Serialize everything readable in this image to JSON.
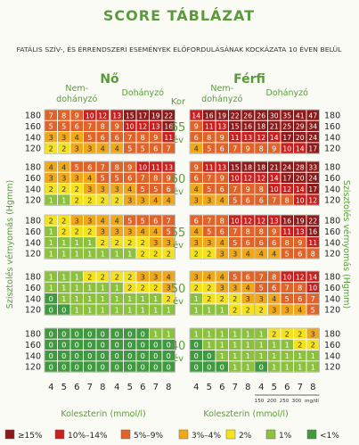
{
  "chart_data": {
    "type": "heatmap",
    "title": "SCORE TÁBLÁZAT",
    "subtitle": "FATÁLIS SZÍV-, ÉS ÉRRENDSZERI ESEMÉNYEK ELŐFORDULÁSÁNAK KOCKÁZATA 10 ÉVEN BELÜL",
    "sex_labels": [
      "Nő",
      "Férfi"
    ],
    "smoking_labels": [
      "Nem-\ndohányzó",
      "Dohányzó"
    ],
    "age_header": "Kor",
    "age_unit": "év",
    "ages": [
      "65",
      "60",
      "55",
      "50",
      "40"
    ],
    "y_label": "Szisztolés vérnyomás (Hgmm)",
    "x_label": "Koleszterin (mmol/l)",
    "bp_ticks": [
      "180",
      "160",
      "140",
      "120"
    ],
    "chol_ticks": [
      "4",
      "5",
      "6",
      "7",
      "8"
    ],
    "mgdl_ticks": [
      "150",
      "200",
      "250",
      "300",
      "mg/dl"
    ],
    "categories": [
      {
        "label": "≥15%",
        "color": "#8b1a1a"
      },
      {
        "label": "10%–14%",
        "color": "#c8201e"
      },
      {
        "label": "5%–9%",
        "color": "#e0642a"
      },
      {
        "label": "3%–4%",
        "color": "#f0a81a"
      },
      {
        "label": "2%",
        "color": "#f5e21e"
      },
      {
        "label": "1%",
        "color": "#8cc13f"
      },
      {
        "label": "<1%",
        "color": "#3f9a3f"
      }
    ],
    "groups": [
      {
        "sex": "Nő",
        "smoking": "Nem-dohányzó",
        "age": "65",
        "values": [
          [
            7,
            8,
            9,
            10,
            12
          ],
          [
            5,
            5,
            6,
            7,
            8
          ],
          [
            3,
            3,
            4,
            5,
            6
          ],
          [
            2,
            2,
            3,
            3,
            4
          ]
        ]
      },
      {
        "sex": "Nő",
        "smoking": "Dohányzó",
        "age": "65",
        "values": [
          [
            13,
            15,
            17,
            19,
            22
          ],
          [
            9,
            10,
            12,
            13,
            16
          ],
          [
            6,
            7,
            8,
            9,
            11
          ],
          [
            4,
            5,
            5,
            6,
            7
          ]
        ]
      },
      {
        "sex": "Férfi",
        "smoking": "Nem-dohányzó",
        "age": "65",
        "values": [
          [
            14,
            16,
            19,
            22,
            26
          ],
          [
            9,
            11,
            13,
            15,
            16
          ],
          [
            6,
            8,
            9,
            11,
            13
          ],
          [
            4,
            5,
            6,
            7,
            9
          ]
        ]
      },
      {
        "sex": "Férfi",
        "smoking": "Dohányzó",
        "age": "65",
        "values": [
          [
            26,
            30,
            35,
            41,
            47
          ],
          [
            18,
            21,
            25,
            29,
            34
          ],
          [
            12,
            14,
            17,
            20,
            24
          ],
          [
            8,
            9,
            10,
            14,
            17
          ]
        ]
      },
      {
        "sex": "Nő",
        "smoking": "Nem-dohányzó",
        "age": "60",
        "values": [
          [
            4,
            4,
            5,
            6,
            7
          ],
          [
            3,
            3,
            3,
            4,
            5
          ],
          [
            2,
            2,
            2,
            3,
            3
          ],
          [
            1,
            1,
            2,
            2,
            2
          ]
        ]
      },
      {
        "sex": "Nő",
        "smoking": "Dohányzó",
        "age": "60",
        "values": [
          [
            8,
            9,
            10,
            11,
            13
          ],
          [
            5,
            6,
            7,
            8,
            9
          ],
          [
            3,
            4,
            5,
            5,
            6
          ],
          [
            2,
            3,
            3,
            4,
            4
          ]
        ]
      },
      {
        "sex": "Férfi",
        "smoking": "Nem-dohányzó",
        "age": "60",
        "values": [
          [
            9,
            11,
            13,
            15,
            18
          ],
          [
            6,
            7,
            9,
            10,
            12
          ],
          [
            4,
            5,
            6,
            7,
            9
          ],
          [
            3,
            3,
            4,
            5,
            6
          ]
        ]
      },
      {
        "sex": "Férfi",
        "smoking": "Dohányzó",
        "age": "60",
        "values": [
          [
            18,
            21,
            24,
            28,
            33
          ],
          [
            12,
            14,
            17,
            20,
            24
          ],
          [
            8,
            10,
            12,
            14,
            17
          ],
          [
            6,
            7,
            8,
            10,
            12
          ]
        ]
      },
      {
        "sex": "Nő",
        "smoking": "Nem-dohányzó",
        "age": "55",
        "values": [
          [
            2,
            2,
            3,
            3,
            4
          ],
          [
            1,
            2,
            2,
            2,
            3
          ],
          [
            1,
            1,
            1,
            1,
            2
          ],
          [
            1,
            1,
            1,
            1,
            1
          ]
        ]
      },
      {
        "sex": "Nő",
        "smoking": "Dohányzó",
        "age": "55",
        "values": [
          [
            4,
            5,
            5,
            6,
            7
          ],
          [
            3,
            3,
            4,
            4,
            5
          ],
          [
            2,
            2,
            2,
            3,
            3
          ],
          [
            1,
            1,
            2,
            2,
            2
          ]
        ]
      },
      {
        "sex": "Férfi",
        "smoking": "Nem-dohányzó",
        "age": "55",
        "values": [
          [
            6,
            7,
            8,
            10,
            12
          ],
          [
            4,
            5,
            6,
            7,
            8
          ],
          [
            3,
            3,
            4,
            5,
            6
          ],
          [
            2,
            2,
            3,
            3,
            4
          ]
        ]
      },
      {
        "sex": "Férfi",
        "smoking": "Dohányzó",
        "age": "55",
        "values": [
          [
            12,
            13,
            16,
            19,
            22
          ],
          [
            8,
            9,
            11,
            13,
            16
          ],
          [
            6,
            6,
            8,
            9,
            11
          ],
          [
            4,
            4,
            5,
            6,
            8
          ]
        ]
      },
      {
        "sex": "Nő",
        "smoking": "Nem-dohányzó",
        "age": "50",
        "values": [
          [
            1,
            1,
            1,
            2,
            2
          ],
          [
            1,
            1,
            1,
            1,
            1
          ],
          [
            0,
            1,
            1,
            1,
            1
          ],
          [
            0,
            0,
            1,
            1,
            1
          ]
        ]
      },
      {
        "sex": "Nő",
        "smoking": "Dohányzó",
        "age": "50",
        "values": [
          [
            2,
            2,
            3,
            3,
            4
          ],
          [
            1,
            2,
            2,
            2,
            3
          ],
          [
            1,
            1,
            1,
            1,
            2
          ],
          [
            1,
            1,
            1,
            1,
            1
          ]
        ]
      },
      {
        "sex": "Férfi",
        "smoking": "Nem-dohányzó",
        "age": "50",
        "values": [
          [
            3,
            4,
            4,
            5,
            6
          ],
          [
            2,
            2,
            3,
            3,
            4
          ],
          [
            1,
            2,
            2,
            2,
            3
          ],
          [
            1,
            1,
            1,
            2,
            2
          ]
        ]
      },
      {
        "sex": "Férfi",
        "smoking": "Dohányzó",
        "age": "50",
        "values": [
          [
            7,
            8,
            10,
            12,
            14
          ],
          [
            5,
            6,
            7,
            8,
            10
          ],
          [
            3,
            4,
            5,
            6,
            7
          ],
          [
            2,
            3,
            3,
            4,
            5
          ]
        ]
      },
      {
        "sex": "Nő",
        "smoking": "Nem-dohányzó",
        "age": "40",
        "values": [
          [
            0,
            0,
            0,
            0,
            0
          ],
          [
            0,
            0,
            0,
            0,
            0
          ],
          [
            0,
            0,
            0,
            0,
            0
          ],
          [
            0,
            0,
            0,
            0,
            0
          ]
        ]
      },
      {
        "sex": "Nő",
        "smoking": "Dohányzó",
        "age": "40",
        "values": [
          [
            0,
            0,
            0,
            1,
            1
          ],
          [
            0,
            0,
            0,
            0,
            0
          ],
          [
            0,
            0,
            0,
            0,
            0
          ],
          [
            0,
            0,
            0,
            0,
            0
          ]
        ]
      },
      {
        "sex": "Férfi",
        "smoking": "Nem-dohányzó",
        "age": "40",
        "values": [
          [
            1,
            1,
            1,
            1,
            1
          ],
          [
            0,
            1,
            1,
            1,
            1
          ],
          [
            0,
            0,
            1,
            1,
            1
          ],
          [
            0,
            0,
            0,
            1,
            1
          ]
        ]
      },
      {
        "sex": "Férfi",
        "smoking": "Dohányzó",
        "age": "40",
        "values": [
          [
            1,
            2,
            2,
            2,
            3
          ],
          [
            1,
            1,
            1,
            2,
            2
          ],
          [
            1,
            1,
            1,
            1,
            1
          ],
          [
            0,
            1,
            1,
            1,
            1
          ]
        ]
      }
    ]
  }
}
